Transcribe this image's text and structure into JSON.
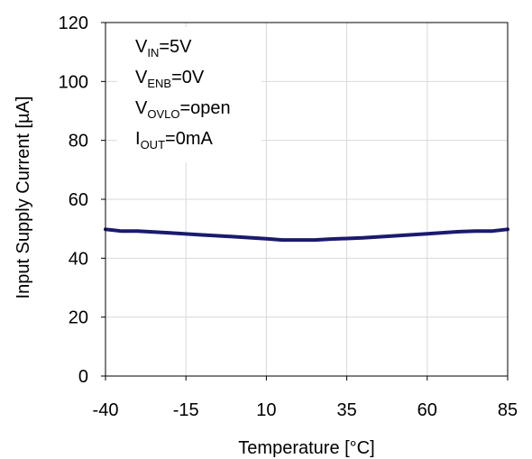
{
  "chart_data": {
    "type": "line",
    "xlabel": "Temperature [°C]",
    "ylabel": "Input Supply Current [µA]",
    "xlim": [
      -40,
      85
    ],
    "ylim": [
      0,
      120
    ],
    "x_ticks": [
      "-40",
      "-15",
      "10",
      "35",
      "60",
      "85"
    ],
    "y_ticks": [
      "0",
      "20",
      "40",
      "60",
      "80",
      "100",
      "120"
    ],
    "grid": true,
    "series": [
      {
        "color": "#1a1a6e",
        "x": [
          -40,
          -35,
          -30,
          -20,
          -10,
          0,
          10,
          15,
          20,
          25,
          30,
          40,
          50,
          60,
          70,
          75,
          80,
          85
        ],
        "y": [
          49.8,
          49.2,
          49.2,
          48.6,
          47.9,
          47.3,
          46.6,
          46.2,
          46.2,
          46.2,
          46.5,
          46.9,
          47.6,
          48.3,
          49.0,
          49.2,
          49.2,
          49.8
        ]
      }
    ],
    "annotations": [
      {
        "main": "V",
        "sub": "IN",
        "rest": "=5V"
      },
      {
        "main": "V",
        "sub": "ENB",
        "rest": "=0V"
      },
      {
        "main": "V",
        "sub": "OVLO",
        "rest": "=open"
      },
      {
        "main": "I",
        "sub": "OUT",
        "rest": "=0mA"
      }
    ]
  }
}
